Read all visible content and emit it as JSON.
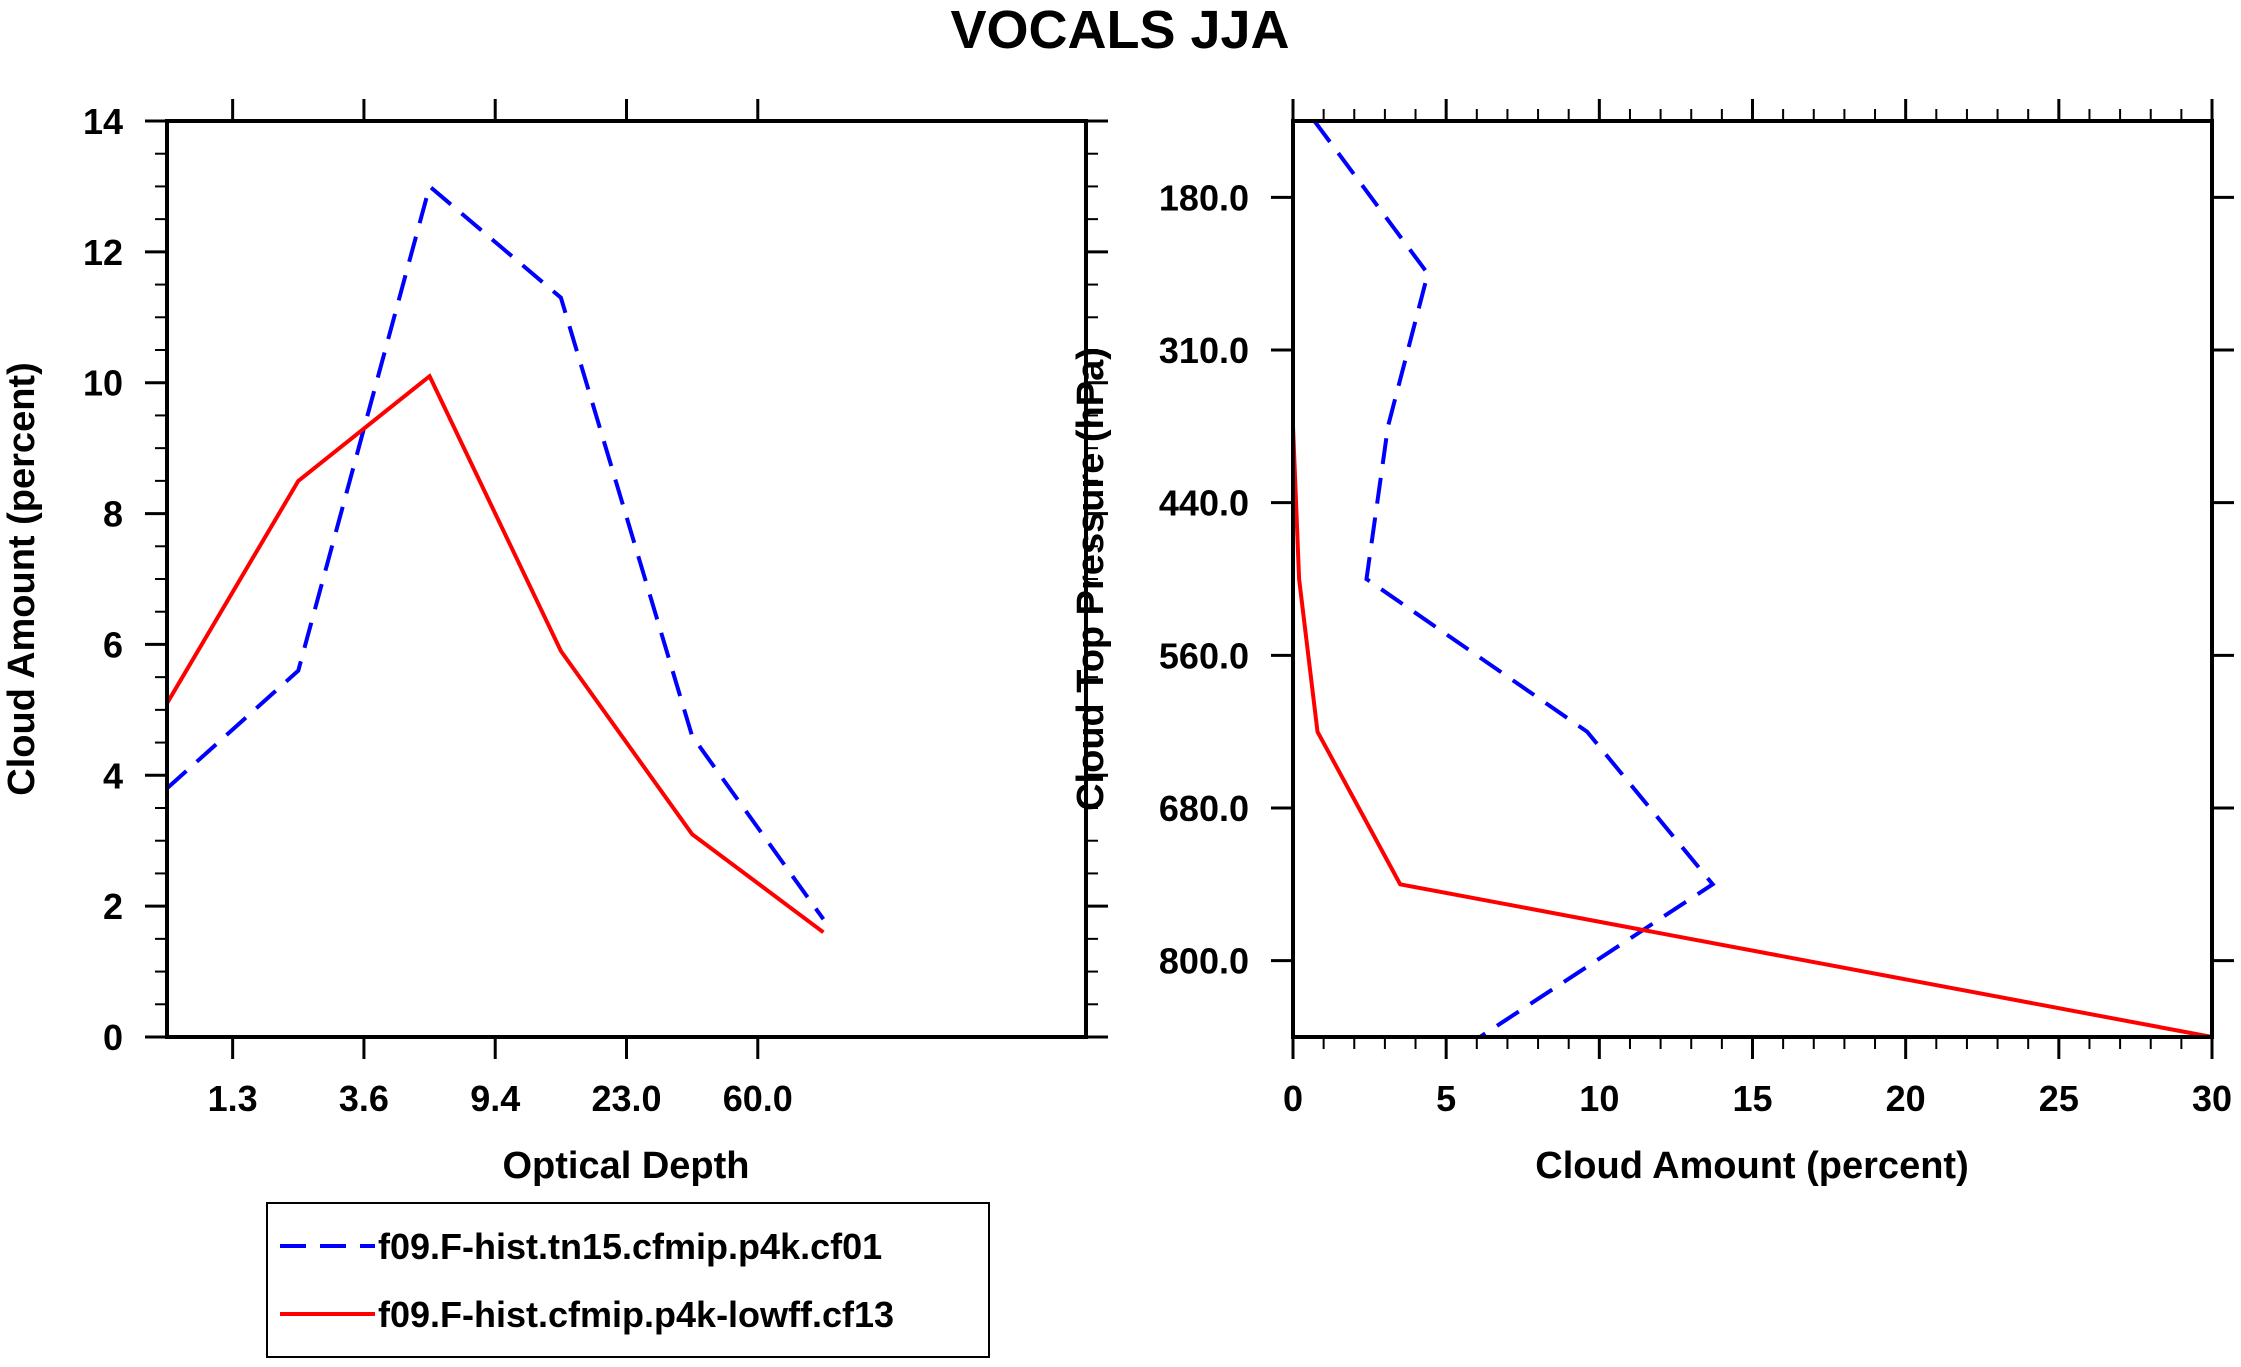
{
  "title": "VOCALS JJA",
  "legend": {
    "entries": [
      {
        "label": "f09.F-hist.tn15.cfmip.p4k.cf01",
        "color": "#0000ff",
        "dash": "dashed"
      },
      {
        "label": "f09.F-hist.cfmip.p4k-lowff.cf13",
        "color": "#ff0000",
        "dash": "solid"
      }
    ]
  },
  "chart_data": [
    {
      "type": "line",
      "title": "",
      "xlabel": "Optical Depth",
      "ylabel": "Cloud Amount (percent)",
      "xlim": [
        0,
        7
      ],
      "ylim": [
        0,
        14
      ],
      "x_positions": [
        0,
        1,
        2,
        3,
        4,
        5,
        6,
        7
      ],
      "x_tick_positions": [
        0.5,
        1.5,
        2.5,
        3.5,
        4.5
      ],
      "x_tick_labels": [
        "1.3",
        "3.6",
        "9.4",
        "23.0",
        "60.0"
      ],
      "y_ticks": [
        0,
        2,
        4,
        6,
        8,
        10,
        12,
        14
      ],
      "y_tick_labels": [
        "0",
        "2",
        "4",
        "6",
        "8",
        "10",
        "12",
        "14"
      ],
      "series": [
        {
          "name": "f09.F-hist.tn15.cfmip.p4k.cf01",
          "color": "#0000ff",
          "dash": "dashed",
          "x": [
            0,
            1,
            2,
            3,
            4,
            5
          ],
          "values": [
            3.8,
            5.6,
            13.0,
            11.3,
            4.6,
            1.8
          ]
        },
        {
          "name": "f09.F-hist.cfmip.p4k-lowff.cf13",
          "color": "#ff0000",
          "dash": "solid",
          "x": [
            0,
            1,
            2,
            3,
            4,
            5
          ],
          "values": [
            5.1,
            8.5,
            10.1,
            5.9,
            3.1,
            1.6
          ]
        }
      ]
    },
    {
      "type": "line",
      "title": "",
      "xlabel": "Cloud Amount (percent)",
      "ylabel": "Cloud Top Pressure (hPa)",
      "xlim": [
        0,
        30
      ],
      "ylim": [
        1.0,
        7.0
      ],
      "y_direction": "top-to-bottom",
      "x_ticks": [
        0,
        5,
        10,
        15,
        20,
        25,
        30
      ],
      "x_tick_labels": [
        "0",
        "5",
        "10",
        "15",
        "20",
        "25",
        "30"
      ],
      "y_tick_positions": [
        1.5,
        2.5,
        3.5,
        4.5,
        5.5,
        6.5
      ],
      "y_tick_labels": [
        "180.0",
        "310.0",
        "440.0",
        "560.0",
        "680.0",
        "800.0"
      ],
      "series": [
        {
          "name": "f09.F-hist.tn15.cfmip.p4k.cf01",
          "color": "#0000ff",
          "dash": "dashed",
          "x": [
            0.7,
            4.4,
            3.1,
            2.4,
            9.6,
            13.7,
            6.1
          ],
          "y": [
            1.0,
            2.0,
            3.0,
            4.0,
            5.0,
            6.0,
            7.0
          ]
        },
        {
          "name": "f09.F-hist.cfmip.p4k-lowff.cf13",
          "color": "#ff0000",
          "dash": "solid",
          "x": [
            0.0,
            0.0,
            0.0,
            0.2,
            0.8,
            3.5,
            30.0
          ],
          "y": [
            1.0,
            2.0,
            3.0,
            4.0,
            5.0,
            6.0,
            7.0
          ]
        }
      ]
    }
  ]
}
